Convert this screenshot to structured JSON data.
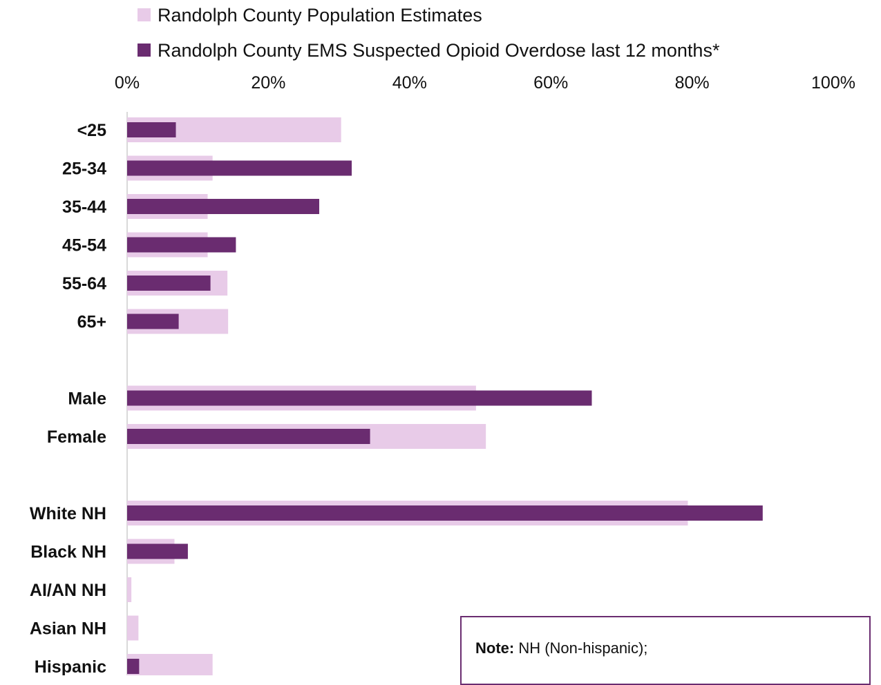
{
  "chart_data": {
    "type": "bar",
    "orientation": "horizontal",
    "title": "",
    "xlabel": "",
    "ylabel": "",
    "xlim": [
      0,
      100
    ],
    "x_ticks": [
      "0%",
      "20%",
      "40%",
      "60%",
      "80%",
      "100%"
    ],
    "x_tick_values": [
      0,
      20,
      40,
      60,
      80,
      100
    ],
    "grid": false,
    "legend_position": "top",
    "categories": [
      "<25",
      "25-34",
      "35-44",
      "45-54",
      "55-64",
      "65+",
      "Male",
      "Female",
      "White NH",
      "Black NH",
      "AI/AN NH",
      "Asian NH",
      "Hispanic"
    ],
    "groups": [
      {
        "categories": [
          "<25",
          "25-34",
          "35-44",
          "45-54",
          "55-64",
          "65+"
        ]
      },
      {
        "categories": [
          "Male",
          "Female"
        ]
      },
      {
        "categories": [
          "White NH",
          "Black NH",
          "AI/AN NH",
          "Asian NH",
          "Hispanic"
        ]
      }
    ],
    "series": [
      {
        "name": "Randolph County Population Estimates",
        "color": "#e8cbe8",
        "values": [
          30.3,
          12.1,
          11.4,
          11.4,
          14.2,
          14.3,
          49.4,
          50.8,
          79.4,
          6.7,
          0.6,
          1.6,
          12.1
        ]
      },
      {
        "name": "Randolph County EMS Suspected Opioid Overdose last 12 months*",
        "color": "#6a2c70",
        "values": [
          6.9,
          31.8,
          27.2,
          15.4,
          11.8,
          7.3,
          65.8,
          34.4,
          90.0,
          8.6,
          0.0,
          0.0,
          1.7
        ]
      }
    ]
  },
  "note": {
    "label": "Note:",
    "text": " NH (Non-hispanic);"
  }
}
